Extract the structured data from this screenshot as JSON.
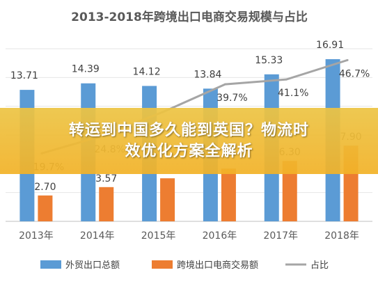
{
  "chart_data": {
    "type": "bar",
    "title": "2013-2018年跨境出口电商交易规模与占比",
    "categories": [
      "2013年",
      "2014年",
      "2015年",
      "2016年",
      "2017年",
      "2018年"
    ],
    "series": [
      {
        "name": "外贸出口总额",
        "kind": "bar",
        "color": "#5b9bd5",
        "values": [
          13.71,
          14.39,
          14.12,
          13.84,
          15.33,
          16.91
        ],
        "labels": [
          "13.71",
          "14.39",
          "14.12",
          "13.84",
          "15.33",
          "16.91"
        ]
      },
      {
        "name": "跨境出口电商交易额",
        "kind": "bar",
        "color": "#ed7d31",
        "values": [
          2.7,
          3.57,
          4.49,
          5.5,
          6.3,
          7.9
        ],
        "labels": [
          "2.70",
          "3.57",
          "",
          "",
          "6.30",
          "7.90"
        ]
      },
      {
        "name": "占比",
        "kind": "line",
        "color": "#a5a5a5",
        "values": [
          19.7,
          24.8,
          31.8,
          39.7,
          41.1,
          46.7
        ],
        "labels": [
          "19.7%",
          "24.8%",
          "",
          "39.7%",
          "41.1%",
          "46.7%"
        ]
      }
    ],
    "ylim": [
      0,
      18
    ],
    "y2lim": [
      0,
      50
    ],
    "grid": true,
    "legend": "bottom"
  },
  "overlay": {
    "line1": "转运到中国多久能到英国？物流时",
    "line2": "效优化方案全解析"
  }
}
